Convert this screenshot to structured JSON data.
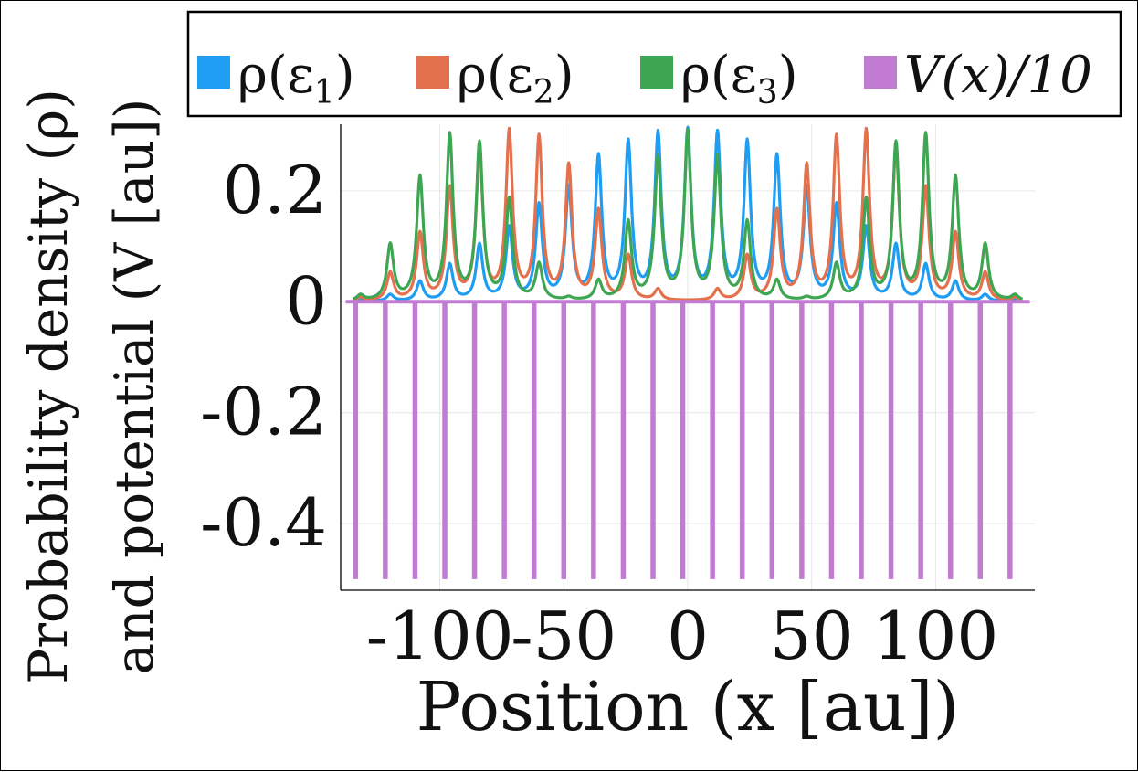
{
  "chart_data": {
    "type": "line",
    "xlabel": "Position (x [au])",
    "ylabel_line1": "Probability density (ρ)",
    "ylabel_line2": "and potential (V [au])",
    "xlim": [
      -140,
      140
    ],
    "ylim": [
      -0.52,
      0.32
    ],
    "xticks": [
      -100,
      -50,
      0,
      50,
      100
    ],
    "xtick_labels": [
      "-100",
      "-50",
      "0",
      "50",
      "100"
    ],
    "yticks": [
      0.2,
      0,
      -0.2,
      -0.4
    ],
    "ytick_labels": [
      "0.2",
      "0",
      "-0.2",
      "-0.4"
    ],
    "grid": true,
    "legend_position": "top",
    "peak_x": [
      -132,
      -120,
      -108,
      -96,
      -84,
      -72,
      -60,
      -48,
      -36,
      -24,
      -12,
      0,
      12,
      24,
      36,
      48,
      60,
      72,
      84,
      96,
      108,
      120,
      132
    ],
    "series": [
      {
        "name": "ρ(ε₁)",
        "label_base": "ρ(ε",
        "label_sub": "1",
        "label_end": ")",
        "color": "#1f9df2",
        "values": [
          0.003,
          0.012,
          0.035,
          0.065,
          0.1,
          0.13,
          0.17,
          0.2,
          0.255,
          0.28,
          0.295,
          0.3,
          0.295,
          0.28,
          0.255,
          0.2,
          0.17,
          0.13,
          0.1,
          0.065,
          0.035,
          0.012,
          0.003
        ]
      },
      {
        "name": "ρ(ε₂)",
        "label_base": "ρ(ε",
        "label_sub": "2",
        "label_end": ")",
        "color": "#e3714e",
        "values": [
          0.006,
          0.05,
          0.12,
          0.2,
          0.27,
          0.3,
          0.29,
          0.24,
          0.16,
          0.08,
          0.02,
          0.0,
          0.02,
          0.08,
          0.16,
          0.24,
          0.29,
          0.3,
          0.27,
          0.2,
          0.12,
          0.05,
          0.006
        ]
      },
      {
        "name": "ρ(ε₃)",
        "label_base": "ρ(ε",
        "label_sub": "3",
        "label_end": ")",
        "color": "#3ea653",
        "values": [
          0.01,
          0.1,
          0.22,
          0.295,
          0.28,
          0.18,
          0.065,
          0.005,
          0.035,
          0.14,
          0.255,
          0.3,
          0.255,
          0.14,
          0.035,
          0.005,
          0.065,
          0.18,
          0.28,
          0.295,
          0.22,
          0.1,
          0.01
        ]
      },
      {
        "name": "V(x)/10",
        "label_base": "V(x)/10",
        "color": "#c27bd3",
        "barrier_x": [
          -134,
          -122,
          -110,
          -98,
          -86,
          -74,
          -62,
          -50,
          -38,
          -26,
          -14,
          -2,
          10,
          22,
          34,
          46,
          58,
          70,
          82,
          94,
          106,
          118,
          130
        ],
        "barrier_min": -0.5,
        "baseline": 0,
        "x_range": [
          -140,
          140
        ]
      }
    ]
  }
}
